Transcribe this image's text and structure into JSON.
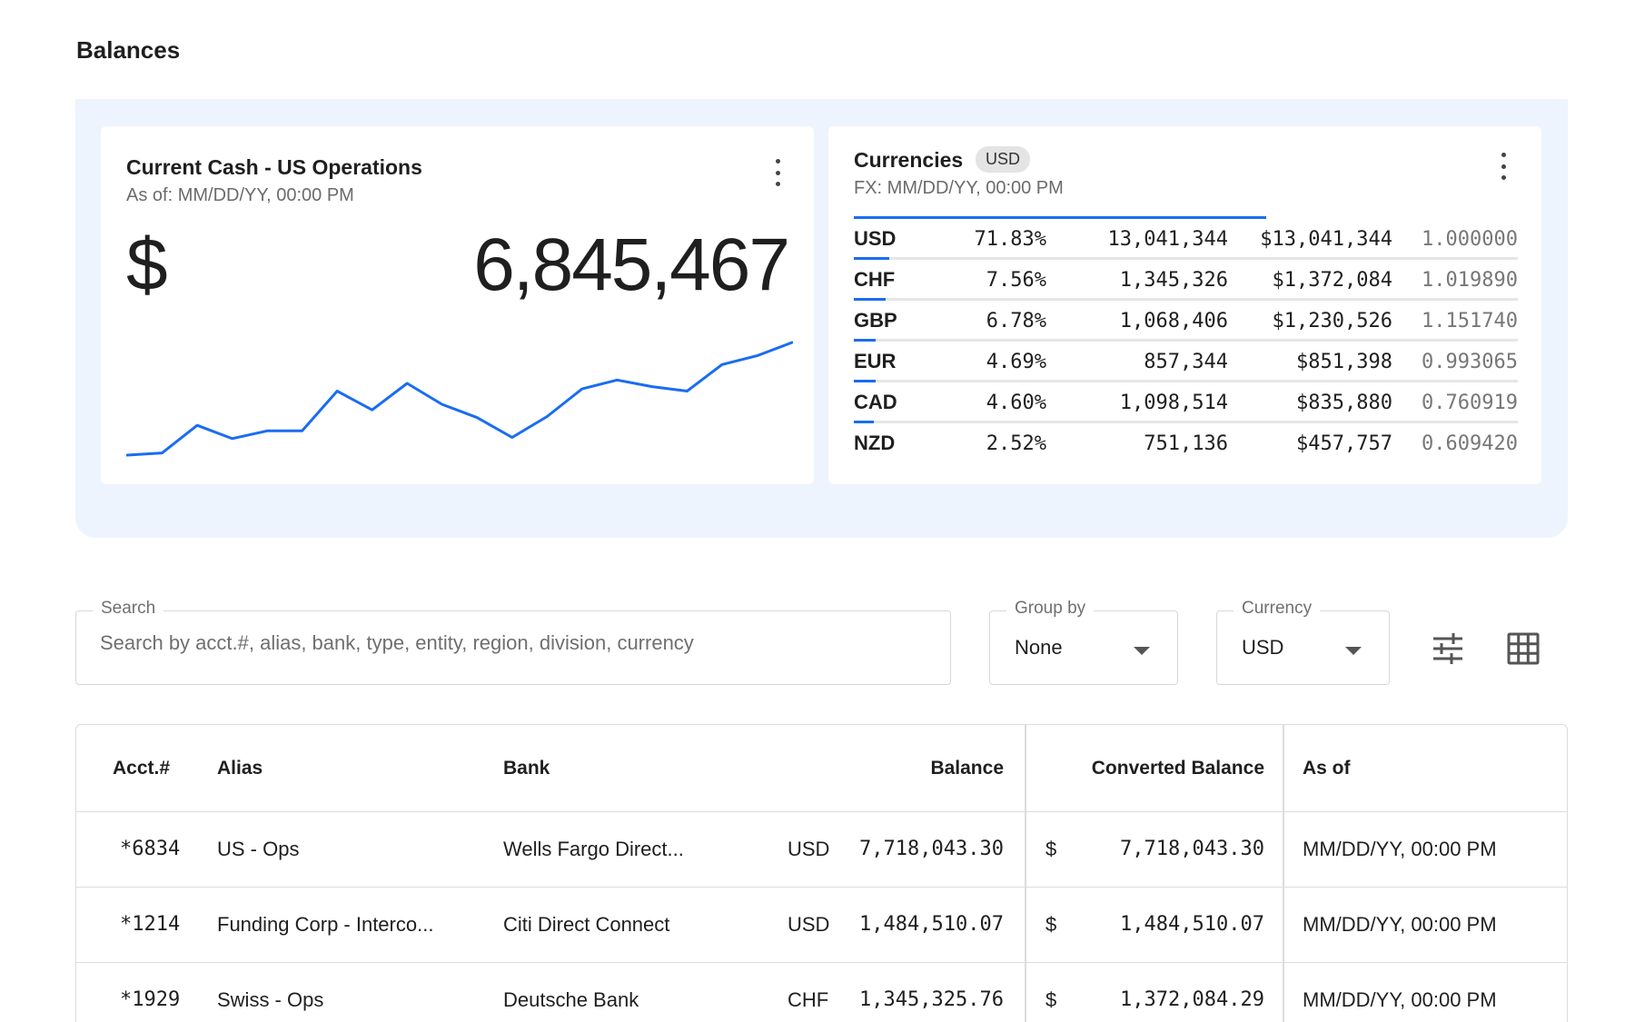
{
  "page": {
    "title": "Balances"
  },
  "cash_card": {
    "title": "Current Cash - US Operations",
    "as_of": "As of: MM/DD/YY, 00:00 PM",
    "currency_symbol": "$",
    "value": "6,845,467",
    "accent_color": "#1a6cf2",
    "trend": [
      5,
      7,
      32,
      20,
      27,
      27,
      63,
      46,
      70,
      51,
      39,
      21,
      40,
      65,
      73,
      67,
      63,
      87,
      95,
      107
    ]
  },
  "currencies_card": {
    "title": "Currencies",
    "badge": "USD",
    "fx_time": "FX: MM/DD/YY, 00:00 PM",
    "bar_color": "#1a6cf2",
    "rows": [
      {
        "code": "USD",
        "pct": "71.83%",
        "share": 0.7183,
        "amount": "13,041,344",
        "converted": "$13,041,344",
        "rate": "1.000000"
      },
      {
        "code": "CHF",
        "pct": "7.56%",
        "share": 0.0756,
        "amount": "1,345,326",
        "converted": "$1,372,084",
        "rate": "1.019890"
      },
      {
        "code": "GBP",
        "pct": "6.78%",
        "share": 0.0678,
        "amount": "1,068,406",
        "converted": "$1,230,526",
        "rate": "1.151740"
      },
      {
        "code": "EUR",
        "pct": "4.69%",
        "share": 0.0469,
        "amount": "857,344",
        "converted": "$851,398",
        "rate": "0.993065"
      },
      {
        "code": "CAD",
        "pct": "4.60%",
        "share": 0.046,
        "amount": "1,098,514",
        "converted": "$835,880",
        "rate": "0.760919"
      },
      {
        "code": "NZD",
        "pct": "2.52%",
        "share": 0.0252,
        "amount": "751,136",
        "converted": "$457,757",
        "rate": "0.609420"
      }
    ]
  },
  "filters": {
    "search_label": "Search",
    "search_placeholder": "Search by acct.#, alias, bank, type, entity, region, division, currency",
    "search_value": "",
    "group_by_label": "Group by",
    "group_by_value": "None",
    "currency_label": "Currency",
    "currency_value": "USD",
    "icons": [
      "tune-icon",
      "grid-view-icon"
    ]
  },
  "table": {
    "headers": {
      "acct": "Acct.#",
      "alias": "Alias",
      "bank": "Bank",
      "balance": "Balance",
      "converted": "Converted Balance",
      "as_of": "As of"
    },
    "rows": [
      {
        "acct": "*6834",
        "alias": "US - Ops",
        "bank": "Wells Fargo Direct...",
        "currency": "USD",
        "balance": "7,718,043.30",
        "conv_symbol": "$",
        "converted": "7,718,043.30",
        "as_of": "MM/DD/YY, 00:00 PM"
      },
      {
        "acct": "*1214",
        "alias": "Funding Corp - Interco...",
        "bank": "Citi Direct Connect",
        "currency": "USD",
        "balance": "1,484,510.07",
        "conv_symbol": "$",
        "converted": "1,484,510.07",
        "as_of": "MM/DD/YY, 00:00 PM"
      },
      {
        "acct": "*1929",
        "alias": "Swiss - Ops",
        "bank": "Deutsche Bank",
        "currency": "CHF",
        "balance": "1,345,325.76",
        "conv_symbol": "$",
        "converted": "1,372,084.29",
        "as_of": "MM/DD/YY, 00:00 PM"
      }
    ]
  }
}
